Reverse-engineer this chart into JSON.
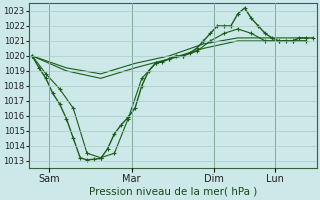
{
  "title": "Pression niveau de la mer( hPa )",
  "ylim": [
    1012.5,
    1023.5
  ],
  "yticks": [
    1013,
    1014,
    1015,
    1016,
    1017,
    1018,
    1019,
    1020,
    1021,
    1022,
    1023
  ],
  "background_color": "#cce8e8",
  "grid_color": "#aacccc",
  "line_color": "#1a5c1a",
  "x_tick_labels": [
    "Sam",
    "Mar",
    "Dim",
    "Lun"
  ],
  "x_tick_positions": [
    12,
    60,
    108,
    144
  ],
  "xlim": [
    0,
    168
  ],
  "lines": {
    "line1": {
      "x": [
        2,
        6,
        10,
        14,
        18,
        22,
        26,
        30,
        34,
        38,
        42,
        46,
        50,
        54,
        58,
        62,
        66,
        70,
        74,
        78,
        82,
        86,
        90,
        94,
        98,
        102,
        106,
        110,
        114,
        118,
        122,
        126,
        130,
        134,
        138,
        142,
        146,
        150,
        154,
        158,
        162,
        166
      ],
      "y": [
        1020,
        1019.2,
        1018.5,
        1017.5,
        1016.8,
        1015.8,
        1014.5,
        1013.2,
        1013.05,
        1013.1,
        1013.15,
        1013.8,
        1014.8,
        1015.4,
        1015.9,
        1016.5,
        1018.0,
        1019.0,
        1019.5,
        1019.6,
        1019.8,
        1020.0,
        1020.0,
        1020.2,
        1020.5,
        1021.0,
        1021.5,
        1022.0,
        1022.0,
        1022.0,
        1022.8,
        1023.2,
        1022.5,
        1022.0,
        1021.5,
        1021.2,
        1021.0,
        1021.0,
        1021.0,
        1021.2,
        1021.2,
        1021.2
      ],
      "marker": "+",
      "lw": 1.0,
      "ms": 3.5
    },
    "line2": {
      "x": [
        2,
        10,
        18,
        26,
        34,
        42,
        50,
        58,
        66,
        74,
        82,
        90,
        98,
        106,
        114,
        122,
        130,
        138,
        146,
        154,
        162
      ],
      "y": [
        1020,
        1018.8,
        1017.8,
        1016.5,
        1013.5,
        1013.2,
        1013.5,
        1015.8,
        1018.5,
        1019.5,
        1019.8,
        1020.0,
        1020.3,
        1021.0,
        1021.5,
        1021.8,
        1021.5,
        1021.0,
        1021.0,
        1021.0,
        1021.0
      ],
      "marker": "+",
      "lw": 0.8,
      "ms": 2.5
    },
    "line3": {
      "x": [
        2,
        22,
        42,
        62,
        82,
        102,
        122,
        142,
        162
      ],
      "y": [
        1020,
        1019.0,
        1018.5,
        1019.2,
        1019.8,
        1020.5,
        1021.0,
        1021.0,
        1021.0
      ],
      "marker": null,
      "lw": 0.8,
      "ms": 0
    },
    "line4": {
      "x": [
        2,
        22,
        42,
        62,
        82,
        102,
        122,
        142,
        162
      ],
      "y": [
        1020,
        1019.2,
        1018.8,
        1019.5,
        1020.0,
        1020.8,
        1021.2,
        1021.2,
        1021.2
      ],
      "marker": null,
      "lw": 0.8,
      "ms": 0
    }
  }
}
